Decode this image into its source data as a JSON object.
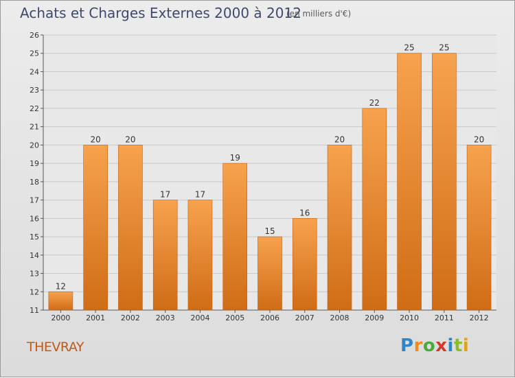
{
  "header": {
    "title": "Achats et Charges Externes 2000 à 2012",
    "subtitle": "(en milliers d'€)"
  },
  "footer": {
    "commune": "THEVRAY",
    "logo_text": "Proxiti"
  },
  "colors": {
    "bar_top": "#f7a24e",
    "bar_bottom": "#d06c16",
    "bar_edge": "#c05f10",
    "grid": "#c8c8c8",
    "axis": "#555555"
  },
  "chart_data": {
    "type": "bar",
    "categories": [
      "2000",
      "2001",
      "2002",
      "2003",
      "2004",
      "2005",
      "2006",
      "2007",
      "2008",
      "2009",
      "2010",
      "2011",
      "2012"
    ],
    "values": [
      12,
      20,
      20,
      17,
      17,
      19,
      15,
      16,
      20,
      22,
      25,
      25,
      20
    ],
    "ylim": [
      11,
      26
    ],
    "yticks": [
      11,
      12,
      13,
      14,
      15,
      16,
      17,
      18,
      19,
      20,
      21,
      22,
      23,
      24,
      25,
      26
    ],
    "grid": true,
    "xlabel": "",
    "ylabel": ""
  }
}
